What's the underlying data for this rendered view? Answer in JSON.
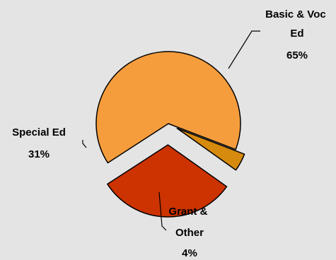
{
  "chart_data": {
    "type": "pie",
    "title": "",
    "exploded": true,
    "slices": [
      {
        "label_lines": [
          "Basic & Voc",
          "Ed"
        ],
        "percent_label": "65%",
        "value": 65,
        "color": "#f59d3d"
      },
      {
        "label_lines": [
          "Grant &",
          "Other"
        ],
        "percent_label": "4%",
        "value": 4,
        "color": "#d68a0e"
      },
      {
        "label_lines": [
          "Special Ed"
        ],
        "percent_label": "31%",
        "value": 31,
        "color": "#cc3300"
      }
    ],
    "slice_outline_color": "#000000",
    "background_color": "#e4e4e4"
  }
}
